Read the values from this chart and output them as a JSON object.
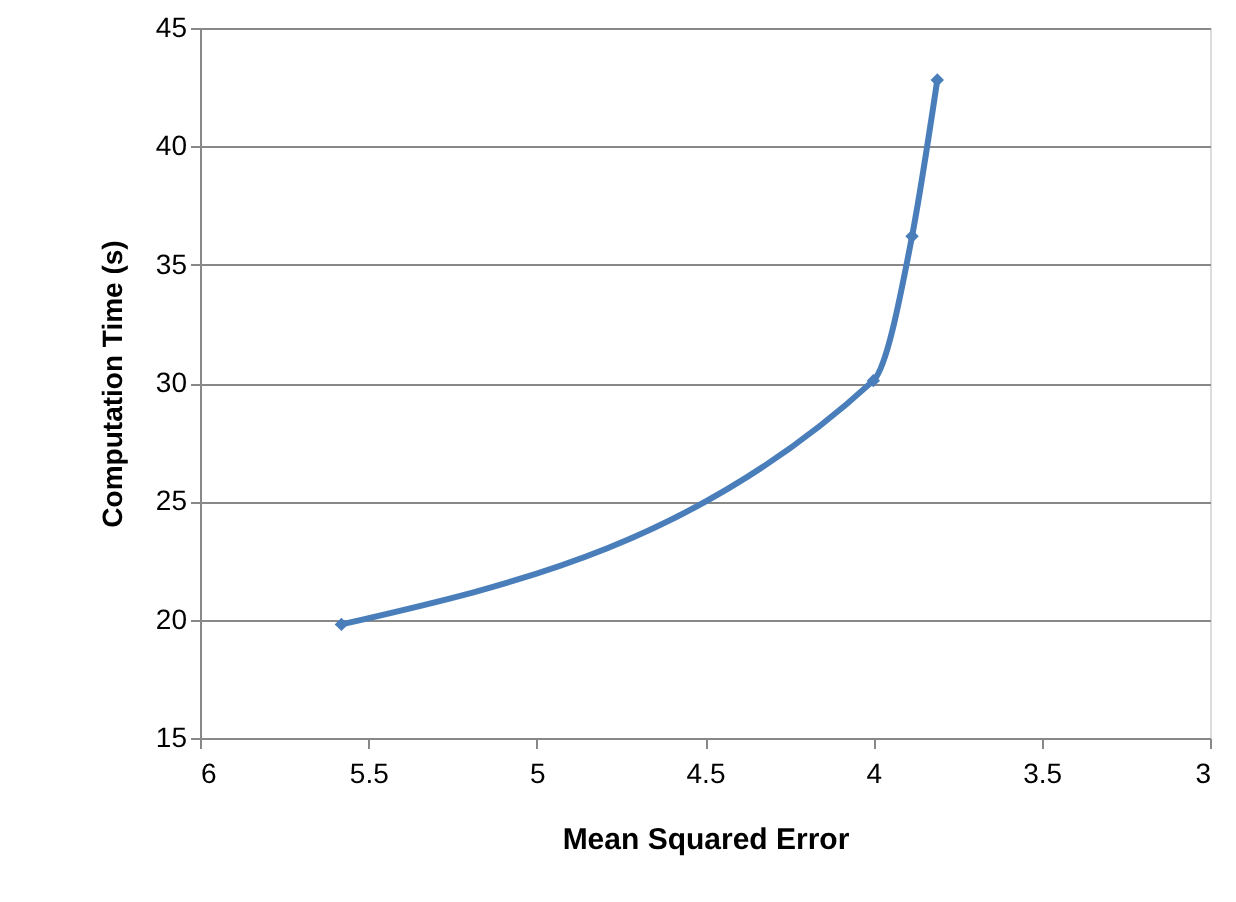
{
  "chart_data": {
    "type": "line",
    "xlabel": "Mean Squared Error",
    "ylabel": "Computation Time (s)",
    "x": [
      5.58,
      4.0,
      3.885,
      3.81
    ],
    "series": [
      {
        "color": "#4a7ebb",
        "values": [
          19.8,
          30.1,
          36.2,
          42.8
        ]
      }
    ],
    "xlim": [
      6,
      3
    ],
    "xticks": [
      6,
      5.5,
      5,
      4.5,
      4,
      3.5,
      3
    ],
    "ylim": [
      15,
      45
    ],
    "yticks": [
      15,
      20,
      25,
      30,
      35,
      40,
      45
    ],
    "grid": "y",
    "marker": "diamond",
    "line_style": "solid"
  }
}
